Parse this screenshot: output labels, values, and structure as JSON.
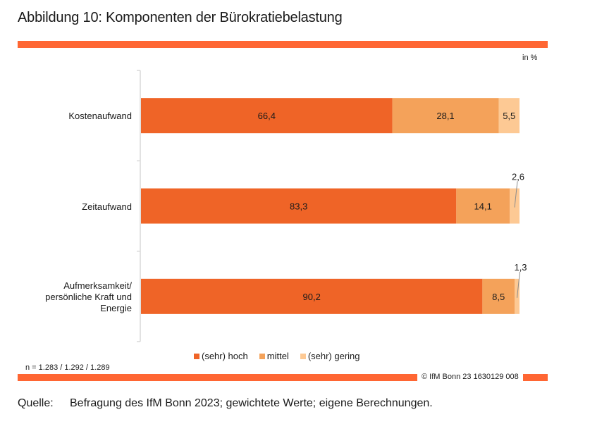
{
  "header": {
    "title": "Abbildung 10:  Komponenten der Bürokratiebelastung",
    "unit_label": "in %"
  },
  "colors": {
    "accent_rule": "#ff6633",
    "hoch": "#ef6427",
    "mittel": "#f4a25a",
    "gering": "#fdc994",
    "axis": "#d9d9d9"
  },
  "chart_data": {
    "type": "bar",
    "orientation": "horizontal",
    "stacked": true,
    "title": "Komponenten der Bürokratiebelastung",
    "unit": "in %",
    "xlim": [
      0,
      100
    ],
    "grid": false,
    "legend_position": "bottom",
    "categories": [
      "Kostenaufwand",
      "Zeitaufwand",
      "Aufmerksamkeit/ persönliche Kraft und Energie"
    ],
    "category_lines": [
      [
        "Kostenaufwand"
      ],
      [
        "Zeitaufwand"
      ],
      [
        "Aufmerksamkeit/",
        "persönliche Kraft und",
        "Energie"
      ]
    ],
    "series": [
      {
        "name": "(sehr) hoch",
        "values": [
          66.4,
          83.3,
          90.2
        ],
        "labels": [
          "66,4",
          "83,3",
          "90,2"
        ]
      },
      {
        "name": "mittel",
        "values": [
          28.1,
          14.1,
          8.5
        ],
        "labels": [
          "28,1",
          "14,1",
          "8,5"
        ]
      },
      {
        "name": "(sehr) gering",
        "values": [
          5.5,
          2.6,
          1.3
        ],
        "labels": [
          "5,5",
          "2,6",
          "1,3"
        ]
      }
    ]
  },
  "legend": [
    {
      "label": "(sehr) hoch"
    },
    {
      "label": "mittel"
    },
    {
      "label": "(sehr) gering"
    }
  ],
  "footer": {
    "sample_note": "n = 1.283 / 1.292 / 1.289",
    "credit": "© IfM Bonn 23 1630129 008",
    "source_label": "Quelle:",
    "source_text": "Befragung des IfM Bonn 2023; gewichtete Werte; eigene Berechnungen."
  }
}
